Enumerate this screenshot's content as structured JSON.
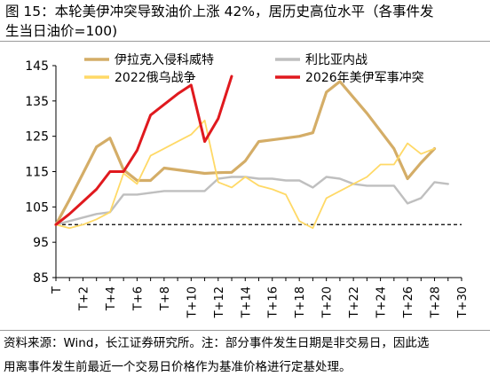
{
  "figure": {
    "title_line1": "图 15：本轮美伊冲突导致油价上涨 42%，居历史高位水平（各事件发",
    "title_line2": "生当日油价=100)",
    "source_line1": "资料来源：Wind，长江证券研究所。注：部分事件发生日期是非交易日，因此选",
    "source_line2": "用离事件发生前最近一个交易日价格作为基准价格进行定基处理。"
  },
  "chart_data": {
    "type": "line",
    "title": "",
    "xlabel": "",
    "ylabel": "",
    "ylim": [
      85,
      145
    ],
    "yticks": [
      85,
      95,
      105,
      115,
      125,
      135,
      145
    ],
    "x": [
      0,
      1,
      2,
      3,
      4,
      5,
      6,
      7,
      8,
      9,
      10,
      11,
      12,
      13,
      14,
      15,
      16,
      17,
      18,
      19,
      20,
      21,
      22,
      23,
      24,
      25,
      26,
      27,
      28,
      29,
      30
    ],
    "xticklabels": [
      "T",
      "T+2",
      "T+4",
      "T+6",
      "T+8",
      "T+10",
      "T+12",
      "T+14",
      "T+16",
      "T+18",
      "T+20",
      "T+22",
      "T+24",
      "T+26",
      "T+28",
      "T+30"
    ],
    "xtick_positions": [
      0,
      2,
      4,
      6,
      8,
      10,
      12,
      14,
      16,
      18,
      20,
      22,
      24,
      26,
      28,
      30
    ],
    "reference_line": 100,
    "legend_position": "top",
    "grid": false,
    "series": [
      {
        "name": "伊拉克入侵科威特",
        "color": "#d4ad67",
        "values": [
          100,
          107,
          114.5,
          122,
          124.5,
          115.5,
          112.5,
          112.5,
          116,
          115.5,
          115,
          114.5,
          114.7,
          114.8,
          118,
          123.5,
          124,
          124.5,
          125,
          126,
          137.5,
          140.5,
          136,
          131.5,
          126.5,
          121.5,
          113,
          117.5,
          121.5,
          null,
          null
        ]
      },
      {
        "name": "利比亚内战",
        "color": "#bfbfbf",
        "values": [
          100,
          101,
          102,
          103,
          103.5,
          108.5,
          108.5,
          109,
          109.5,
          109.5,
          109.5,
          109.5,
          113,
          113.5,
          113.5,
          113,
          113,
          112.5,
          112.5,
          110.5,
          113.5,
          113,
          111.5,
          111,
          111,
          111,
          106,
          107.5,
          112,
          111.5,
          null
        ]
      },
      {
        "name": "2022俄乌战争",
        "color": "#ffd966",
        "values": [
          100,
          99,
          100,
          101.5,
          103.5,
          114.5,
          111.5,
          119.5,
          121.5,
          123.5,
          125.5,
          129.5,
          112,
          110.5,
          113.5,
          111,
          110,
          108.5,
          101,
          99,
          107.5,
          109.5,
          111.5,
          113.5,
          117,
          117,
          123,
          120,
          121.5,
          null,
          null
        ]
      },
      {
        "name": "2026年美伊军事冲突",
        "color": "#e0191e",
        "values": [
          100,
          103,
          106.5,
          110,
          115,
          115,
          121,
          131,
          134,
          137,
          139.5,
          123.5,
          130,
          142,
          null,
          null,
          null,
          null,
          null,
          null,
          null,
          null,
          null,
          null,
          null,
          null,
          null,
          null,
          null,
          null,
          null
        ]
      }
    ]
  }
}
